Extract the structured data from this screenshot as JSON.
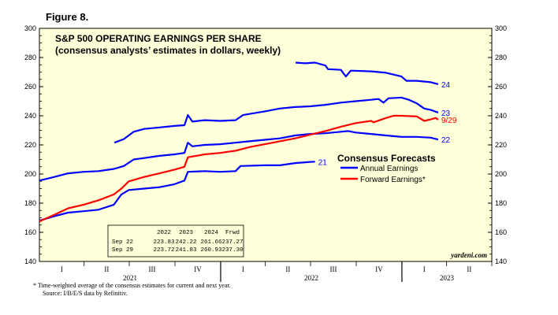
{
  "figure_label": "Figure 8.",
  "brand": "yardeni.com",
  "footnote_1": "*   Time-weighted average of the consensus estimates for current and next year.",
  "footnote_2": "Source: I/B/E/S data by Refinitiv.",
  "colors": {
    "plot_bg": "#ffffd9",
    "annual": "#0000ff",
    "forward": "#ff0000"
  },
  "chart_data": {
    "type": "line",
    "title": "S&P 500 OPERATING EARNINGS PER SHARE",
    "subtitle": "(consensus analysts’ estimates in dollars, weekly)",
    "xlabel": "",
    "ylabel": "",
    "ylim": [
      140,
      300
    ],
    "yticks": [
      140,
      160,
      180,
      200,
      220,
      240,
      260,
      280,
      300
    ],
    "xlim": [
      "2021-01-01",
      "2023-07-01"
    ],
    "x_quarters": [
      "I",
      "II",
      "III",
      "IV",
      "I",
      "II",
      "III",
      "IV",
      "I",
      "II"
    ],
    "x_years": [
      "2021",
      "2022",
      "2023"
    ],
    "grid": false,
    "legend": {
      "title": "Consensus Forecasts",
      "placement": "right",
      "items": [
        "Annual Earnings",
        "Forward Earnings*"
      ]
    },
    "series": [
      {
        "name": "21",
        "kind": "annual",
        "points": [
          [
            "2021-01-01",
            168
          ],
          [
            "2021-01-31",
            171
          ],
          [
            "2021-02-28",
            173.5
          ],
          [
            "2021-03-31",
            174.5
          ],
          [
            "2021-04-30",
            175.5
          ],
          [
            "2021-05-31",
            179
          ],
          [
            "2021-06-15",
            186
          ],
          [
            "2021-06-30",
            189
          ],
          [
            "2021-07-31",
            190
          ],
          [
            "2021-08-31",
            191
          ],
          [
            "2021-09-30",
            193
          ],
          [
            "2021-10-20",
            195.5
          ],
          [
            "2021-10-27",
            201.5
          ],
          [
            "2021-11-30",
            202
          ],
          [
            "2021-12-31",
            201.5
          ],
          [
            "2022-01-31",
            202
          ],
          [
            "2022-02-10",
            205.5
          ],
          [
            "2022-03-31",
            206
          ],
          [
            "2022-04-30",
            206
          ],
          [
            "2022-05-31",
            207.5
          ],
          [
            "2022-06-30",
            208.3
          ],
          [
            "2022-07-10",
            208.5
          ]
        ]
      },
      {
        "name": "22",
        "kind": "annual",
        "points": [
          [
            "2021-01-01",
            195.5
          ],
          [
            "2021-01-31",
            198
          ],
          [
            "2021-02-28",
            200.5
          ],
          [
            "2021-03-31",
            201.5
          ],
          [
            "2021-04-30",
            202
          ],
          [
            "2021-05-31",
            203.5
          ],
          [
            "2021-06-20",
            205.5
          ],
          [
            "2021-07-10",
            210
          ],
          [
            "2021-07-31",
            211
          ],
          [
            "2021-08-31",
            212.5
          ],
          [
            "2021-09-30",
            213.5
          ],
          [
            "2021-10-20",
            214.5
          ],
          [
            "2021-10-27",
            221.5
          ],
          [
            "2021-11-05",
            219
          ],
          [
            "2021-11-30",
            220
          ],
          [
            "2021-12-31",
            220.5
          ],
          [
            "2022-01-31",
            221.5
          ],
          [
            "2022-02-28",
            222.5
          ],
          [
            "2022-03-31",
            223.5
          ],
          [
            "2022-04-30",
            224.5
          ],
          [
            "2022-05-31",
            226.5
          ],
          [
            "2022-06-30",
            227.5
          ],
          [
            "2022-07-31",
            228
          ],
          [
            "2022-08-31",
            229
          ],
          [
            "2022-09-15",
            229.5
          ],
          [
            "2022-09-30",
            228.5
          ],
          [
            "2022-10-31",
            227.5
          ],
          [
            "2022-11-30",
            226.5
          ],
          [
            "2022-12-31",
            225.5
          ],
          [
            "2023-01-31",
            225.5
          ],
          [
            "2023-02-28",
            225
          ],
          [
            "2023-03-15",
            223.7
          ]
        ]
      },
      {
        "name": "23",
        "kind": "annual",
        "points": [
          [
            "2021-06-01",
            221.5
          ],
          [
            "2021-06-20",
            224
          ],
          [
            "2021-07-10",
            229
          ],
          [
            "2021-07-31",
            231
          ],
          [
            "2021-08-31",
            232
          ],
          [
            "2021-09-30",
            233
          ],
          [
            "2021-10-20",
            233.5
          ],
          [
            "2021-10-27",
            240.5
          ],
          [
            "2021-11-05",
            236
          ],
          [
            "2021-11-30",
            237
          ],
          [
            "2021-12-31",
            236.5
          ],
          [
            "2022-01-31",
            237
          ],
          [
            "2022-02-15",
            240.5
          ],
          [
            "2022-03-31",
            243
          ],
          [
            "2022-04-30",
            245
          ],
          [
            "2022-05-31",
            246
          ],
          [
            "2022-06-30",
            246.5
          ],
          [
            "2022-07-31",
            247.5
          ],
          [
            "2022-08-31",
            249
          ],
          [
            "2022-09-30",
            250
          ],
          [
            "2022-10-31",
            251
          ],
          [
            "2022-11-15",
            251.5
          ],
          [
            "2022-11-25",
            249
          ],
          [
            "2022-12-05",
            252
          ],
          [
            "2022-12-31",
            252.5
          ],
          [
            "2023-01-15",
            251
          ],
          [
            "2023-01-31",
            248.5
          ],
          [
            "2023-02-15",
            245
          ],
          [
            "2023-02-28",
            244
          ],
          [
            "2023-03-15",
            242.2
          ]
        ]
      },
      {
        "name": "24",
        "kind": "annual",
        "points": [
          [
            "2022-06-01",
            276.5
          ],
          [
            "2022-06-20",
            276
          ],
          [
            "2022-07-10",
            276.5
          ],
          [
            "2022-07-31",
            274.5
          ],
          [
            "2022-08-05",
            272
          ],
          [
            "2022-08-31",
            271.5
          ],
          [
            "2022-09-10",
            267
          ],
          [
            "2022-09-20",
            271
          ],
          [
            "2022-10-31",
            270.5
          ],
          [
            "2022-11-30",
            269.5
          ],
          [
            "2022-12-31",
            267
          ],
          [
            "2023-01-10",
            264
          ],
          [
            "2023-01-31",
            264
          ],
          [
            "2023-02-28",
            263
          ],
          [
            "2023-03-15",
            261.7
          ]
        ]
      },
      {
        "name": "9/29",
        "kind": "forward",
        "points": [
          [
            "2021-01-01",
            167.5
          ],
          [
            "2021-01-31",
            172
          ],
          [
            "2021-02-28",
            176.5
          ],
          [
            "2021-03-31",
            179
          ],
          [
            "2021-04-30",
            182
          ],
          [
            "2021-05-31",
            186
          ],
          [
            "2021-06-15",
            190
          ],
          [
            "2021-06-30",
            195
          ],
          [
            "2021-07-31",
            198
          ],
          [
            "2021-08-31",
            200.5
          ],
          [
            "2021-09-30",
            203
          ],
          [
            "2021-10-20",
            205
          ],
          [
            "2021-10-27",
            211.5
          ],
          [
            "2021-11-30",
            213.5
          ],
          [
            "2021-12-31",
            214.5
          ],
          [
            "2022-01-31",
            216
          ],
          [
            "2022-02-28",
            218.5
          ],
          [
            "2022-03-31",
            220.5
          ],
          [
            "2022-04-30",
            222.5
          ],
          [
            "2022-05-31",
            224.5
          ],
          [
            "2022-06-30",
            227
          ],
          [
            "2022-07-31",
            229.5
          ],
          [
            "2022-08-31",
            232.5
          ],
          [
            "2022-09-30",
            235
          ],
          [
            "2022-10-31",
            236.5
          ],
          [
            "2022-11-05",
            235.5
          ],
          [
            "2022-11-30",
            238.5
          ],
          [
            "2022-12-15",
            240
          ],
          [
            "2022-12-31",
            240
          ],
          [
            "2023-01-31",
            239.5
          ],
          [
            "2023-02-15",
            236.5
          ],
          [
            "2023-02-28",
            237.5
          ],
          [
            "2023-03-10",
            238.5
          ],
          [
            "2023-03-15",
            237.3
          ]
        ]
      }
    ],
    "table": {
      "headers": [
        "",
        "2022",
        "2023",
        "2024",
        "Frwd"
      ],
      "rows": [
        [
          "Sep 22",
          "223.83",
          "242.22",
          "261.66",
          "237.27"
        ],
        [
          "Sep 29",
          "223.72",
          "241.83",
          "260.93",
          "237.30"
        ]
      ]
    }
  }
}
